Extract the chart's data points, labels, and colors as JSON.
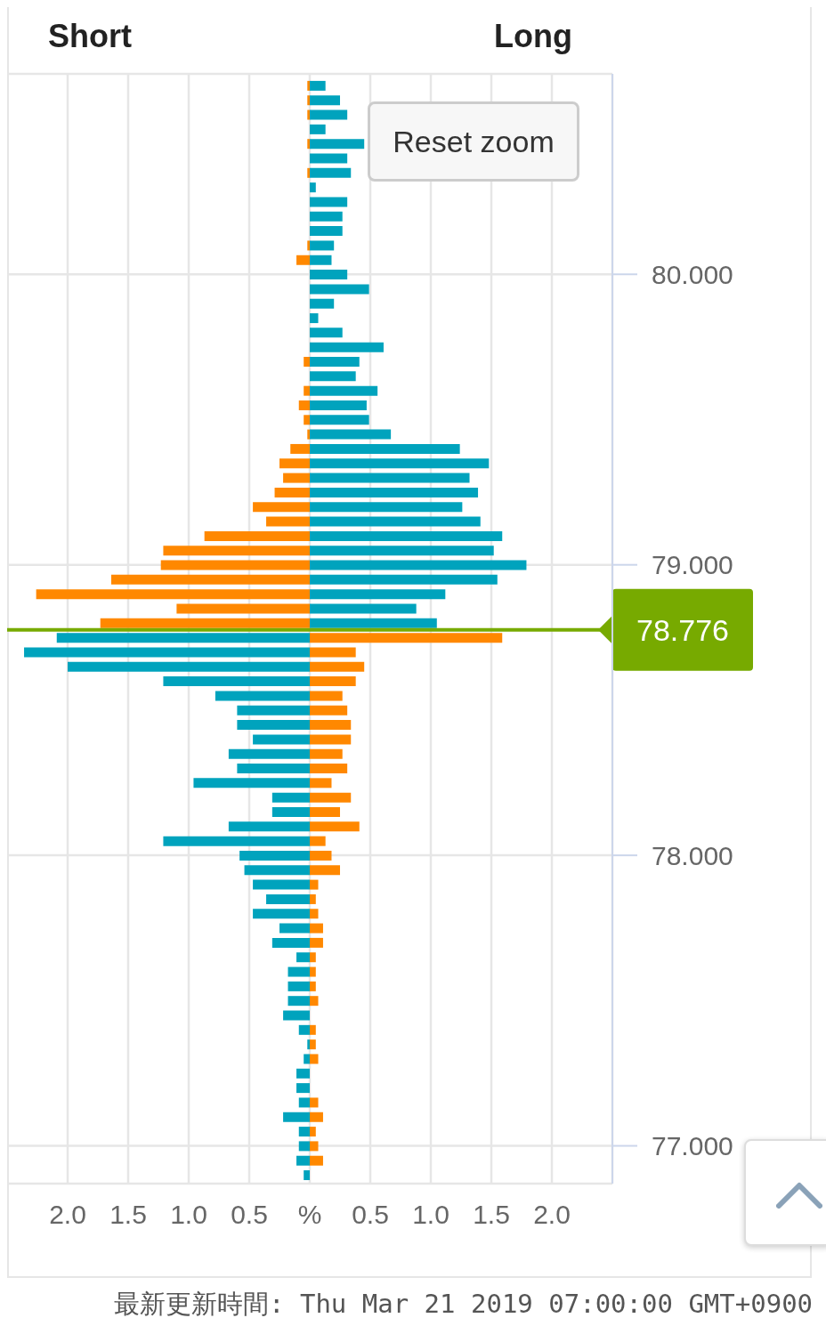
{
  "chart_data": {
    "type": "bar",
    "orientation": "horizontal",
    "stacked": true,
    "x": [
      80.65,
      80.6,
      80.55,
      80.5,
      80.45,
      80.4,
      80.35,
      80.3,
      80.25,
      80.2,
      80.15,
      80.1,
      80.05,
      80.0,
      79.95,
      79.9,
      79.85,
      79.8,
      79.75,
      79.7,
      79.65,
      79.6,
      79.55,
      79.5,
      79.45,
      79.4,
      79.35,
      79.3,
      79.25,
      79.2,
      79.15,
      79.1,
      79.05,
      79.0,
      78.95,
      78.9,
      78.85,
      78.8,
      78.75,
      78.7,
      78.65,
      78.6,
      78.55,
      78.5,
      78.45,
      78.4,
      78.35,
      78.3,
      78.25,
      78.2,
      78.15,
      78.1,
      78.05,
      78.0,
      77.95,
      77.9,
      77.85,
      77.8,
      77.75,
      77.7,
      77.65,
      77.6,
      77.55,
      77.5,
      77.45,
      77.4,
      77.35,
      77.3,
      77.25,
      77.2,
      77.15,
      77.1,
      77.05,
      77.0,
      76.95,
      76.9
    ],
    "series": [
      {
        "values": [
          -0.02,
          -0.02,
          -0.02,
          null,
          -0.02,
          null,
          -0.02,
          null,
          null,
          null,
          null,
          -0.02,
          -0.11,
          null,
          null,
          null,
          null,
          null,
          null,
          -0.05,
          null,
          -0.05,
          -0.09,
          -0.05,
          -0.02,
          -0.16,
          -0.25,
          -0.22,
          -0.29,
          -0.47,
          -0.36,
          -0.87,
          -1.21,
          -1.23,
          -1.64,
          -2.26,
          -1.1,
          -1.73,
          -2.09,
          -2.36,
          -2.0,
          -1.21,
          -0.78,
          -0.6,
          -0.6,
          -0.47,
          -0.67,
          -0.6,
          -0.96,
          -0.31,
          -0.31,
          -0.67,
          -1.21,
          -0.58,
          -0.54,
          -0.47,
          -0.36,
          -0.47,
          -0.25,
          -0.31,
          -0.11,
          -0.18,
          -0.18,
          -0.18,
          -0.22,
          -0.09,
          -0.02,
          -0.05,
          -0.11,
          -0.11,
          -0.09,
          -0.22,
          -0.09,
          -0.09,
          -0.11,
          -0.05
        ],
        "colors": [
          "#ff8800",
          "#ff8800",
          "#ff8800",
          "#ff8800",
          "#ff8800",
          "#ff8800",
          "#ff8800",
          "#ff8800",
          "#ff8800",
          "#ff8800",
          "#ff8800",
          "#ff8800",
          "#ff8800",
          "#ff8800",
          "#ff8800",
          "#ff8800",
          "#ff8800",
          "#ff8800",
          "#ff8800",
          "#ff8800",
          "#ff8800",
          "#ff8800",
          "#ff8800",
          "#ff8800",
          "#ff8800",
          "#ff8800",
          "#ff8800",
          "#ff8800",
          "#ff8800",
          "#ff8800",
          "#ff8800",
          "#ff8800",
          "#ff8800",
          "#ff8800",
          "#ff8800",
          "#ff8800",
          "#ff8800",
          "#ff8800",
          "#00a3bd",
          "#00a3bd",
          "#00a3bd",
          "#00a3bd",
          "#00a3bd",
          "#00a3bd",
          "#00a3bd",
          "#00a3bd",
          "#00a3bd",
          "#00a3bd",
          "#00a3bd",
          "#00a3bd",
          "#00a3bd",
          "#00a3bd",
          "#00a3bd",
          "#00a3bd",
          "#00a3bd",
          "#00a3bd",
          "#00a3bd",
          "#00a3bd",
          "#00a3bd",
          "#00a3bd",
          "#00a3bd",
          "#00a3bd",
          "#00a3bd",
          "#00a3bd",
          "#00a3bd",
          "#00a3bd",
          "#00a3bd",
          "#00a3bd",
          "#00a3bd",
          "#00a3bd",
          "#00a3bd",
          "#00a3bd",
          "#00a3bd",
          "#00a3bd",
          "#00a3bd",
          "#00a3bd"
        ]
      },
      {
        "values": [
          0.13,
          0.25,
          0.31,
          0.13,
          0.45,
          0.31,
          0.34,
          0.05,
          0.31,
          0.27,
          0.27,
          0.2,
          0.18,
          0.31,
          0.49,
          0.2,
          0.07,
          0.27,
          0.61,
          0.41,
          0.38,
          0.56,
          0.47,
          0.49,
          0.67,
          1.24,
          1.48,
          1.32,
          1.39,
          1.26,
          1.41,
          1.59,
          1.52,
          1.79,
          1.55,
          1.12,
          0.88,
          1.05,
          1.59,
          0.38,
          0.45,
          0.38,
          0.27,
          0.31,
          0.34,
          0.34,
          0.27,
          0.31,
          0.18,
          0.34,
          0.25,
          0.41,
          0.13,
          0.18,
          0.25,
          0.07,
          0.05,
          0.07,
          0.11,
          0.11,
          0.05,
          0.05,
          0.05,
          0.07,
          null,
          0.05,
          0.05,
          0.07,
          null,
          null,
          0.07,
          0.11,
          0.05,
          0.07,
          0.11,
          null
        ],
        "colors": [
          "#00a3bd",
          "#00a3bd",
          "#00a3bd",
          "#00a3bd",
          "#00a3bd",
          "#00a3bd",
          "#00a3bd",
          "#00a3bd",
          "#00a3bd",
          "#00a3bd",
          "#00a3bd",
          "#00a3bd",
          "#00a3bd",
          "#00a3bd",
          "#00a3bd",
          "#00a3bd",
          "#00a3bd",
          "#00a3bd",
          "#00a3bd",
          "#00a3bd",
          "#00a3bd",
          "#00a3bd",
          "#00a3bd",
          "#00a3bd",
          "#00a3bd",
          "#00a3bd",
          "#00a3bd",
          "#00a3bd",
          "#00a3bd",
          "#00a3bd",
          "#00a3bd",
          "#00a3bd",
          "#00a3bd",
          "#00a3bd",
          "#00a3bd",
          "#00a3bd",
          "#00a3bd",
          "#00a3bd",
          "#ff8800",
          "#ff8800",
          "#ff8800",
          "#ff8800",
          "#ff8800",
          "#ff8800",
          "#ff8800",
          "#ff8800",
          "#ff8800",
          "#ff8800",
          "#ff8800",
          "#ff8800",
          "#ff8800",
          "#ff8800",
          "#ff8800",
          "#ff8800",
          "#ff8800",
          "#ff8800",
          "#ff8800",
          "#ff8800",
          "#ff8800",
          "#ff8800",
          "#ff8800",
          "#ff8800",
          "#ff8800",
          "#ff8800",
          "#ff8800",
          "#ff8800",
          "#ff8800",
          "#ff8800",
          "#ff8800",
          "#ff8800",
          "#ff8800",
          "#ff8800",
          "#ff8800",
          "#ff8800",
          "#ff8800",
          "#ff8800"
        ]
      }
    ],
    "xlim": [
      -2.5,
      2.5
    ],
    "xticks": [
      {
        "value": -2,
        "label": "2.0"
      },
      {
        "value": -1.5,
        "label": "1.5"
      },
      {
        "value": -1,
        "label": "1.0"
      },
      {
        "value": -0.5,
        "label": "0.5"
      },
      {
        "value": 0,
        "label": "%"
      },
      {
        "value": 0.5,
        "label": "0.5"
      },
      {
        "value": 1,
        "label": "1.0"
      },
      {
        "value": 1.5,
        "label": "1.5"
      },
      {
        "value": 2,
        "label": "2.0"
      }
    ],
    "ylim": [
      76.87,
      80.69
    ],
    "yticks": [
      {
        "value": 77,
        "label": "77.000"
      },
      {
        "value": 78,
        "label": "78.000"
      },
      {
        "value": 79,
        "label": "79.000"
      },
      {
        "value": 80,
        "label": "80.000"
      }
    ],
    "grid": true,
    "ref_lines": [
      {
        "axis": "y",
        "value": 78.776,
        "label": "78.776",
        "color": "#77aa00"
      }
    ],
    "annotations": [
      "Short",
      "Long",
      "Reset zoom",
      "最新更新時間: Thu Mar 21 2019 07:00:00 GMT+0900"
    ]
  }
}
